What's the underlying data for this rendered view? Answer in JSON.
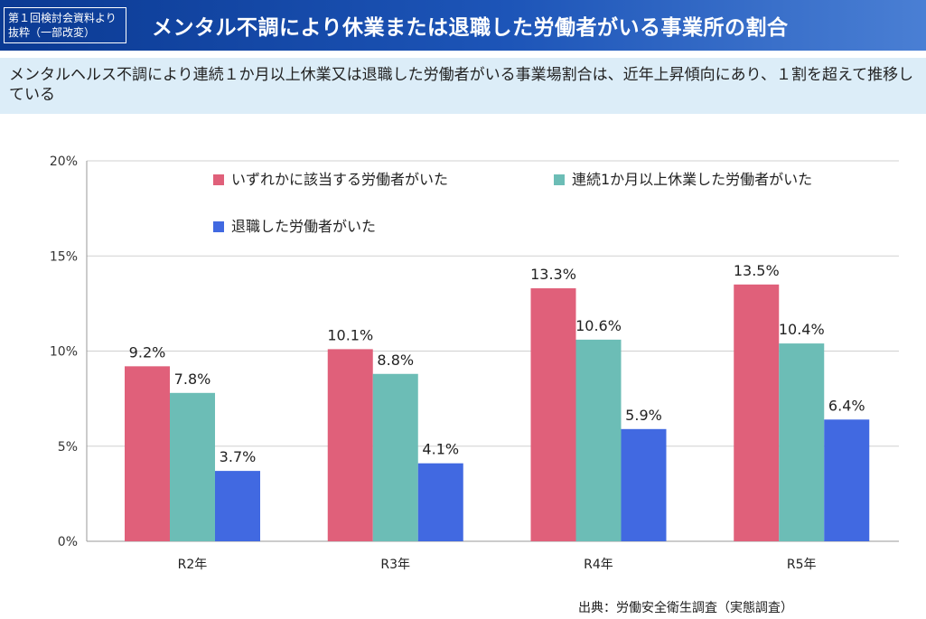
{
  "header": {
    "source_label_line1": "第１回検討会資料より",
    "source_label_line2": "抜粋（一部改変）",
    "title": "メンタル不調により休業または退職した労働者がいる事業所の割合"
  },
  "subtitle": "メンタルヘルス不調により連続１か月以上休業又は退職した労働者がいる事業場割合は、近年上昇傾向にあり、１割を超えて推移している",
  "footer": {
    "source": "出典：労働安全衛生調査（実態調査）"
  },
  "colors": {
    "header_start": "#0b3a93",
    "header_end": "#4a7fd4",
    "subtitle_band": "#dcedf8",
    "series": [
      "#e0607a",
      "#6cbdb6",
      "#4169e1"
    ]
  },
  "chart_data": {
    "type": "bar",
    "categories": [
      "R2年",
      "R3年",
      "R4年",
      "R5年"
    ],
    "series": [
      {
        "name": "いずれかに該当する労働者がいた",
        "values": [
          9.2,
          10.1,
          13.3,
          13.5
        ],
        "labels": [
          "9.2%",
          "10.1%",
          "13.3%",
          "13.5%"
        ]
      },
      {
        "name": "連続1か月以上休業した労働者がいた",
        "values": [
          7.8,
          8.8,
          10.6,
          10.4
        ],
        "labels": [
          "7.8%",
          "8.8%",
          "10.6%",
          "10.4%"
        ]
      },
      {
        "name": "退職した労働者がいた",
        "values": [
          3.7,
          4.1,
          5.9,
          6.4
        ],
        "labels": [
          "3.7%",
          "4.1%",
          "5.9%",
          "6.4%"
        ]
      }
    ],
    "ylim": [
      0,
      20
    ],
    "yticks": [
      0,
      5,
      10,
      15,
      20
    ],
    "ytick_labels": [
      "0%",
      "5%",
      "10%",
      "15%",
      "20%"
    ],
    "grid": true,
    "legend_position": "top-inside"
  }
}
